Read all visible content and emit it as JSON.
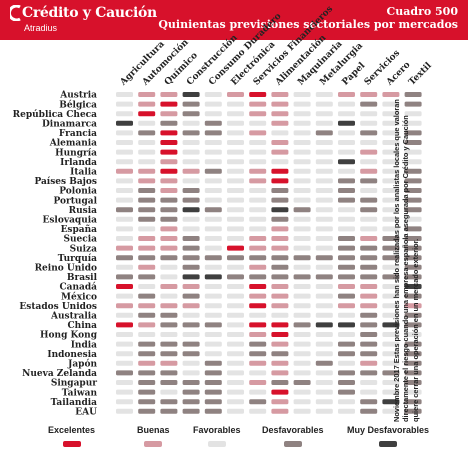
{
  "header": {
    "brand": "Crédito y Caución",
    "brand_sub": "Atradius",
    "title": "Cuadro 500",
    "subtitle": "Quinientas previsiones sectoriales por mercados"
  },
  "note": "Noviembre 2017 Estas previsiones han sido realizadas por los analistas locales que valoran directamente el riesgo cuando una empresa española asegurada por Crédito y Caución quiere cerrar una operación en un mercado exterior.",
  "colors": {
    "excelentes": "#d7112b",
    "buenas": "#d69aa2",
    "favorables": "#e3e3e3",
    "desfavorables": "#8f8281",
    "muy_desfavorables": "#3f3f3f",
    "brand_red": "#d7112b"
  },
  "legend": [
    {
      "key": "E",
      "label": "Excelentes",
      "color": "#d7112b"
    },
    {
      "key": "B",
      "label": "Buenas",
      "color": "#d69aa2"
    },
    {
      "key": "F",
      "label": "Favorables",
      "color": "#e3e3e3"
    },
    {
      "key": "D",
      "label": "Desfavorables",
      "color": "#8f8281"
    },
    {
      "key": "M",
      "label": "Muy Desfavorables",
      "color": "#3f3f3f"
    }
  ],
  "chart_data": {
    "type": "heatmap",
    "columns": [
      "Agricultura",
      "Automoción",
      "Químico",
      "Construcción",
      "Consumo Duradero",
      "Electrónica",
      "Servicios Financieros",
      "Alimentación",
      "Maquinaria",
      "Metalurgia",
      "Papel",
      "Servicios",
      "Acero",
      "Textil"
    ],
    "rows": [
      "Austria",
      "Bélgica",
      "República Checa",
      "Dinamarca",
      "Francia",
      "Alemania",
      "Hungría",
      "Irlanda",
      "Italia",
      "Países Bajos",
      "Polonia",
      "Portugal",
      "Rusia",
      "Eslovaquia",
      "España",
      "Suecia",
      "Suiza",
      "Turquía",
      "Reino Unido",
      "Brasil",
      "Canadá",
      "México",
      "Estados Unidos",
      "Australia",
      "China",
      "Hong Kong",
      "India",
      "Indonesia",
      "Japón",
      "Nueva Zelanda",
      "Singapur",
      "Taiwan",
      "Tailandia",
      "EAU"
    ],
    "scale": {
      "E": "Excelentes",
      "B": "Buenas",
      "F": "Favorables",
      "D": "Desfavorables",
      "M": "Muy Desfavorables"
    },
    "values": [
      [
        "F",
        "B",
        "B",
        "M",
        "F",
        "B",
        "E",
        "B",
        "F",
        "F",
        "B",
        "B",
        "B",
        "D"
      ],
      [
        "F",
        "B",
        "E",
        "D",
        "F",
        "F",
        "B",
        "B",
        "F",
        "F",
        "F",
        "D",
        "F",
        "D"
      ],
      [
        "F",
        "E",
        "B",
        "D",
        "F",
        "F",
        "B",
        "B",
        "F",
        "F",
        "F",
        "F",
        "F",
        "F"
      ],
      [
        "M",
        "F",
        "D",
        "F",
        "D",
        "F",
        "F",
        "B",
        "F",
        "F",
        "M",
        "F",
        "F",
        "F"
      ],
      [
        "F",
        "D",
        "E",
        "D",
        "D",
        "F",
        "B",
        "F",
        "F",
        "D",
        "F",
        "D",
        "F",
        "D"
      ],
      [
        "F",
        "F",
        "E",
        "F",
        "F",
        "F",
        "F",
        "B",
        "F",
        "F",
        "F",
        "F",
        "F",
        "D"
      ],
      [
        "F",
        "F",
        "E",
        "F",
        "F",
        "F",
        "F",
        "B",
        "F",
        "F",
        "F",
        "B",
        "F",
        "F"
      ],
      [
        "F",
        "F",
        "B",
        "F",
        "F",
        "F",
        "F",
        "F",
        "F",
        "F",
        "M",
        "F",
        "F",
        "F"
      ],
      [
        "B",
        "B",
        "E",
        "B",
        "D",
        "F",
        "B",
        "E",
        "F",
        "F",
        "F",
        "B",
        "F",
        "D"
      ],
      [
        "F",
        "B",
        "B",
        "F",
        "F",
        "F",
        "B",
        "E",
        "F",
        "F",
        "D",
        "D",
        "F",
        "D"
      ],
      [
        "F",
        "D",
        "B",
        "D",
        "F",
        "F",
        "F",
        "D",
        "F",
        "F",
        "D",
        "F",
        "F",
        "D"
      ],
      [
        "F",
        "D",
        "D",
        "D",
        "F",
        "F",
        "F",
        "D",
        "F",
        "F",
        "D",
        "D",
        "F",
        "D"
      ],
      [
        "D",
        "D",
        "D",
        "M",
        "D",
        "F",
        "F",
        "M",
        "D",
        "F",
        "F",
        "D",
        "F",
        "D"
      ],
      [
        "F",
        "D",
        "D",
        "F",
        "F",
        "F",
        "F",
        "D",
        "F",
        "F",
        "F",
        "F",
        "F",
        "F"
      ],
      [
        "F",
        "F",
        "B",
        "F",
        "F",
        "F",
        "F",
        "B",
        "F",
        "F",
        "F",
        "F",
        "F",
        "D"
      ],
      [
        "F",
        "B",
        "B",
        "D",
        "F",
        "F",
        "B",
        "B",
        "F",
        "F",
        "D",
        "B",
        "D",
        "D"
      ],
      [
        "B",
        "B",
        "B",
        "D",
        "F",
        "E",
        "B",
        "B",
        "F",
        "F",
        "D",
        "D",
        "D",
        "D"
      ],
      [
        "D",
        "D",
        "D",
        "D",
        "D",
        "D",
        "D",
        "D",
        "D",
        "D",
        "D",
        "D",
        "D",
        "D"
      ],
      [
        "F",
        "B",
        "F",
        "D",
        "F",
        "F",
        "B",
        "D",
        "F",
        "F",
        "D",
        "D",
        "F",
        "D"
      ],
      [
        "D",
        "D",
        "F",
        "M",
        "M",
        "D",
        "D",
        "D",
        "D",
        "D",
        "D",
        "D",
        "D",
        "D"
      ],
      [
        "E",
        "F",
        "B",
        "B",
        "F",
        "F",
        "E",
        "B",
        "F",
        "F",
        "B",
        "B",
        "F",
        "M"
      ],
      [
        "F",
        "D",
        "F",
        "D",
        "F",
        "F",
        "B",
        "B",
        "F",
        "F",
        "D",
        "B",
        "F",
        "D"
      ],
      [
        "B",
        "B",
        "B",
        "B",
        "F",
        "F",
        "E",
        "B",
        "F",
        "F",
        "B",
        "B",
        "F",
        "B"
      ],
      [
        "F",
        "D",
        "D",
        "F",
        "F",
        "F",
        "F",
        "F",
        "F",
        "F",
        "F",
        "D",
        "F",
        "D"
      ],
      [
        "E",
        "B",
        "D",
        "D",
        "D",
        "F",
        "E",
        "E",
        "D",
        "M",
        "M",
        "D",
        "M",
        "D"
      ],
      [
        "F",
        "F",
        "F",
        "F",
        "F",
        "F",
        "B",
        "E",
        "F",
        "F",
        "F",
        "D",
        "F",
        "F"
      ],
      [
        "F",
        "D",
        "D",
        "D",
        "F",
        "F",
        "D",
        "B",
        "F",
        "F",
        "D",
        "D",
        "F",
        "D"
      ],
      [
        "F",
        "D",
        "D",
        "D",
        "F",
        "F",
        "D",
        "D",
        "F",
        "F",
        "D",
        "D",
        "F",
        "D"
      ],
      [
        "F",
        "B",
        "B",
        "F",
        "D",
        "F",
        "B",
        "B",
        "F",
        "D",
        "F",
        "B",
        "F",
        "D"
      ],
      [
        "D",
        "D",
        "D",
        "F",
        "D",
        "F",
        "F",
        "B",
        "F",
        "F",
        "D",
        "D",
        "D",
        "D"
      ],
      [
        "F",
        "D",
        "D",
        "D",
        "D",
        "F",
        "B",
        "D",
        "D",
        "F",
        "D",
        "F",
        "F",
        "D"
      ],
      [
        "F",
        "D",
        "F",
        "D",
        "D",
        "F",
        "F",
        "E",
        "F",
        "F",
        "D",
        "F",
        "F",
        "F"
      ],
      [
        "F",
        "D",
        "D",
        "D",
        "D",
        "F",
        "D",
        "B",
        "F",
        "F",
        "F",
        "D",
        "M",
        "D"
      ],
      [
        "F",
        "D",
        "D",
        "D",
        "D",
        "F",
        "F",
        "B",
        "F",
        "F",
        "F",
        "D",
        "F",
        "D"
      ]
    ]
  }
}
